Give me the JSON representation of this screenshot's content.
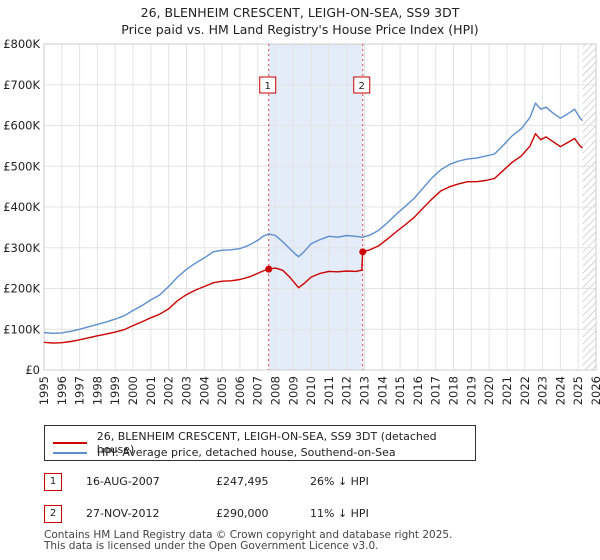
{
  "chart_data": {
    "type": "line",
    "title": "26, BLENHEIM CRESCENT, LEIGH-ON-SEA, SS9 3DT",
    "subtitle": "Price paid vs. HM Land Registry's House Price Index (HPI)",
    "xlim": [
      1995,
      2026
    ],
    "ylim": [
      0,
      800000
    ],
    "y_ticks": [
      {
        "value": 0,
        "label": "£0"
      },
      {
        "value": 100000,
        "label": "£100K"
      },
      {
        "value": 200000,
        "label": "£200K"
      },
      {
        "value": 300000,
        "label": "£300K"
      },
      {
        "value": 400000,
        "label": "£400K"
      },
      {
        "value": 500000,
        "label": "£500K"
      },
      {
        "value": 600000,
        "label": "£600K"
      },
      {
        "value": 700000,
        "label": "£700K"
      },
      {
        "value": 800000,
        "label": "£800K"
      }
    ],
    "x_ticks": [
      "1995",
      "1996",
      "1997",
      "1998",
      "1999",
      "2000",
      "2001",
      "2002",
      "2003",
      "2004",
      "2005",
      "2006",
      "2007",
      "2008",
      "2009",
      "2010",
      "2011",
      "2012",
      "2013",
      "2014",
      "2015",
      "2016",
      "2017",
      "2018",
      "2019",
      "2020",
      "2021",
      "2022",
      "2023",
      "2024",
      "2025",
      "2026"
    ],
    "shaded_span": [
      2007.62,
      2012.9
    ],
    "forecast_start": 2025.25,
    "series": [
      {
        "name": "26, BLENHEIM CRESCENT, LEIGH-ON-SEA, SS9 3DT (detached house)",
        "color": "#cc0000",
        "points": [
          [
            1995.0,
            68000
          ],
          [
            1995.5,
            66000
          ],
          [
            1996.0,
            67000
          ],
          [
            1996.5,
            70000
          ],
          [
            1997.0,
            74000
          ],
          [
            1997.5,
            79000
          ],
          [
            1998.0,
            84000
          ],
          [
            1998.5,
            88000
          ],
          [
            1999.0,
            93000
          ],
          [
            1999.5,
            99000
          ],
          [
            2000.0,
            109000
          ],
          [
            2000.5,
            118000
          ],
          [
            2001.0,
            128000
          ],
          [
            2001.5,
            137000
          ],
          [
            2002.0,
            150000
          ],
          [
            2002.5,
            170000
          ],
          [
            2003.0,
            185000
          ],
          [
            2003.5,
            196000
          ],
          [
            2004.0,
            205000
          ],
          [
            2004.5,
            214000
          ],
          [
            2005.0,
            218000
          ],
          [
            2005.5,
            219000
          ],
          [
            2006.0,
            222000
          ],
          [
            2006.5,
            228000
          ],
          [
            2007.0,
            237000
          ],
          [
            2007.3,
            243000
          ],
          [
            2007.62,
            247495
          ],
          [
            2008.0,
            250000
          ],
          [
            2008.4,
            245000
          ],
          [
            2008.8,
            228000
          ],
          [
            2009.1,
            212000
          ],
          [
            2009.3,
            202000
          ],
          [
            2009.6,
            212000
          ],
          [
            2010.0,
            228000
          ],
          [
            2010.5,
            237000
          ],
          [
            2011.0,
            242000
          ],
          [
            2011.5,
            241000
          ],
          [
            2012.0,
            243000
          ],
          [
            2012.5,
            242000
          ],
          [
            2012.85,
            245000
          ],
          [
            2012.9,
            290000
          ],
          [
            2013.3,
            295000
          ],
          [
            2013.8,
            305000
          ],
          [
            2014.3,
            322000
          ],
          [
            2014.8,
            340000
          ],
          [
            2015.3,
            357000
          ],
          [
            2015.8,
            375000
          ],
          [
            2016.3,
            398000
          ],
          [
            2016.8,
            420000
          ],
          [
            2017.3,
            440000
          ],
          [
            2017.8,
            450000
          ],
          [
            2018.3,
            457000
          ],
          [
            2018.8,
            462000
          ],
          [
            2019.3,
            462000
          ],
          [
            2019.8,
            465000
          ],
          [
            2020.3,
            470000
          ],
          [
            2020.8,
            490000
          ],
          [
            2021.3,
            510000
          ],
          [
            2021.8,
            525000
          ],
          [
            2022.3,
            550000
          ],
          [
            2022.6,
            580000
          ],
          [
            2022.9,
            565000
          ],
          [
            2023.2,
            572000
          ],
          [
            2023.6,
            560000
          ],
          [
            2024.0,
            548000
          ],
          [
            2024.4,
            558000
          ],
          [
            2024.8,
            568000
          ],
          [
            2025.1,
            550000
          ],
          [
            2025.25,
            545000
          ]
        ]
      },
      {
        "name": "HPI: Average price, detached house, Southend-on-Sea",
        "color": "#5b8fd0",
        "points": [
          [
            1995.0,
            92000
          ],
          [
            1995.5,
            90000
          ],
          [
            1996.0,
            91000
          ],
          [
            1996.5,
            95000
          ],
          [
            1997.0,
            100000
          ],
          [
            1997.5,
            106000
          ],
          [
            1998.0,
            112000
          ],
          [
            1998.5,
            118000
          ],
          [
            1999.0,
            125000
          ],
          [
            1999.5,
            133000
          ],
          [
            2000.0,
            146000
          ],
          [
            2000.5,
            158000
          ],
          [
            2001.0,
            172000
          ],
          [
            2001.5,
            184000
          ],
          [
            2002.0,
            205000
          ],
          [
            2002.5,
            228000
          ],
          [
            2003.0,
            247000
          ],
          [
            2003.5,
            262000
          ],
          [
            2004.0,
            275000
          ],
          [
            2004.5,
            290000
          ],
          [
            2005.0,
            294000
          ],
          [
            2005.5,
            295000
          ],
          [
            2006.0,
            298000
          ],
          [
            2006.5,
            306000
          ],
          [
            2007.0,
            318000
          ],
          [
            2007.3,
            328000
          ],
          [
            2007.62,
            334000
          ],
          [
            2008.0,
            330000
          ],
          [
            2008.4,
            315000
          ],
          [
            2008.8,
            298000
          ],
          [
            2009.1,
            285000
          ],
          [
            2009.3,
            278000
          ],
          [
            2009.6,
            290000
          ],
          [
            2010.0,
            310000
          ],
          [
            2010.5,
            320000
          ],
          [
            2011.0,
            328000
          ],
          [
            2011.5,
            326000
          ],
          [
            2012.0,
            330000
          ],
          [
            2012.5,
            328000
          ],
          [
            2012.9,
            326000
          ],
          [
            2013.3,
            331000
          ],
          [
            2013.8,
            343000
          ],
          [
            2014.3,
            362000
          ],
          [
            2014.8,
            383000
          ],
          [
            2015.3,
            402000
          ],
          [
            2015.8,
            422000
          ],
          [
            2016.3,
            447000
          ],
          [
            2016.8,
            472000
          ],
          [
            2017.3,
            492000
          ],
          [
            2017.8,
            505000
          ],
          [
            2018.3,
            513000
          ],
          [
            2018.8,
            518000
          ],
          [
            2019.3,
            520000
          ],
          [
            2019.8,
            525000
          ],
          [
            2020.3,
            530000
          ],
          [
            2020.8,
            552000
          ],
          [
            2021.3,
            575000
          ],
          [
            2021.8,
            592000
          ],
          [
            2022.3,
            620000
          ],
          [
            2022.6,
            655000
          ],
          [
            2022.9,
            640000
          ],
          [
            2023.2,
            645000
          ],
          [
            2023.6,
            630000
          ],
          [
            2024.0,
            618000
          ],
          [
            2024.4,
            628000
          ],
          [
            2024.8,
            640000
          ],
          [
            2025.1,
            618000
          ],
          [
            2025.25,
            612000
          ]
        ]
      }
    ],
    "sales": [
      {
        "label": "1",
        "x": 2007.62,
        "price": 247495
      },
      {
        "label": "2",
        "x": 2012.9,
        "price": 290000
      }
    ]
  },
  "legend": {
    "property_label": "26, BLENHEIM CRESCENT, LEIGH-ON-SEA, SS9 3DT (detached house)",
    "hpi_label": "HPI: Average price, detached house, Southend-on-Sea"
  },
  "sales_table": [
    {
      "badge": "1",
      "date": "16-AUG-2007",
      "price": "£247,495",
      "delta": "26% ↓ HPI"
    },
    {
      "badge": "2",
      "date": "27-NOV-2012",
      "price": "£290,000",
      "delta": "11% ↓ HPI"
    }
  ],
  "footer": {
    "line1": "Contains HM Land Registry data © Crown copyright and database right 2025.",
    "line2": "This data is licensed under the Open Government Licence v3.0."
  },
  "colors": {
    "property": "#cc0000",
    "hpi": "#5b8fd0",
    "shade": "#dde6f7",
    "grid": "#e3e3e3"
  }
}
